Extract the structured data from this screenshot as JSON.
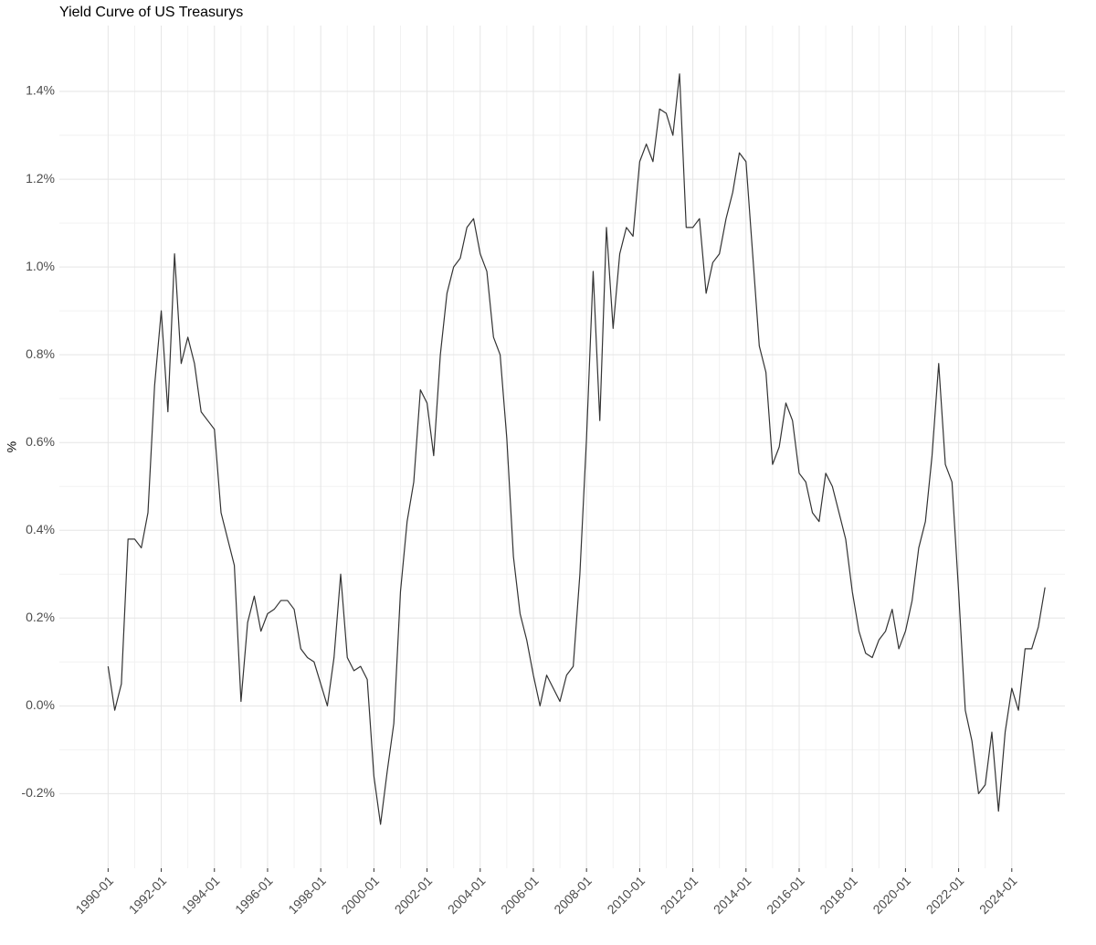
{
  "chart_data": {
    "type": "line",
    "title": "Yield Curve of US Treasurys",
    "y_label": "%",
    "x": [
      "1990-01",
      "1990-04",
      "1990-07",
      "1990-10",
      "1991-01",
      "1991-04",
      "1991-07",
      "1991-10",
      "1992-01",
      "1992-04",
      "1992-07",
      "1992-10",
      "1993-01",
      "1993-04",
      "1993-07",
      "1993-10",
      "1994-01",
      "1994-04",
      "1994-07",
      "1994-10",
      "1995-01",
      "1995-04",
      "1995-07",
      "1995-10",
      "1996-01",
      "1996-04",
      "1996-07",
      "1996-10",
      "1997-01",
      "1997-04",
      "1997-07",
      "1997-10",
      "1998-01",
      "1998-04",
      "1998-07",
      "1998-10",
      "1999-01",
      "1999-04",
      "1999-07",
      "1999-10",
      "2000-01",
      "2000-04",
      "2000-07",
      "2000-10",
      "2001-01",
      "2001-04",
      "2001-07",
      "2001-10",
      "2002-01",
      "2002-04",
      "2002-07",
      "2002-10",
      "2003-01",
      "2003-04",
      "2003-07",
      "2003-10",
      "2004-01",
      "2004-04",
      "2004-07",
      "2004-10",
      "2005-01",
      "2005-04",
      "2005-07",
      "2005-10",
      "2006-01",
      "2006-04",
      "2006-07",
      "2006-10",
      "2007-01",
      "2007-04",
      "2007-07",
      "2007-10",
      "2008-01",
      "2008-04",
      "2008-07",
      "2008-10",
      "2009-01",
      "2009-04",
      "2009-07",
      "2009-10",
      "2010-01",
      "2010-04",
      "2010-07",
      "2010-10",
      "2011-01",
      "2011-04",
      "2011-07",
      "2011-10",
      "2012-01",
      "2012-04",
      "2012-07",
      "2012-10",
      "2013-01",
      "2013-04",
      "2013-07",
      "2013-10",
      "2014-01",
      "2014-04",
      "2014-07",
      "2014-10",
      "2015-01",
      "2015-04",
      "2015-07",
      "2015-10",
      "2016-01",
      "2016-04",
      "2016-07",
      "2016-10",
      "2017-01",
      "2017-04",
      "2017-07",
      "2017-10",
      "2018-01",
      "2018-04",
      "2018-07",
      "2018-10",
      "2019-01",
      "2019-04",
      "2019-07",
      "2019-10",
      "2020-01",
      "2020-04",
      "2020-07",
      "2020-10",
      "2021-01",
      "2021-04",
      "2021-07",
      "2021-10",
      "2022-01",
      "2022-04",
      "2022-07",
      "2022-10",
      "2023-01",
      "2023-04",
      "2023-07",
      "2023-10",
      "2024-01",
      "2024-04",
      "2024-07",
      "2024-10",
      "2025-01",
      "2025-04"
    ],
    "series": [
      {
        "name": "Yield Curve",
        "color": "#333333",
        "values": [
          0.09,
          -0.01,
          0.05,
          0.38,
          0.38,
          0.36,
          0.44,
          0.73,
          0.9,
          0.67,
          1.03,
          0.78,
          0.84,
          0.78,
          0.67,
          0.65,
          0.63,
          0.44,
          0.38,
          0.32,
          0.01,
          0.19,
          0.25,
          0.17,
          0.21,
          0.22,
          0.24,
          0.24,
          0.22,
          0.13,
          0.11,
          0.1,
          0.05,
          0.0,
          0.11,
          0.3,
          0.11,
          0.08,
          0.09,
          0.06,
          -0.16,
          -0.27,
          -0.15,
          -0.04,
          0.26,
          0.42,
          0.51,
          0.72,
          0.69,
          0.57,
          0.8,
          0.94,
          1.0,
          1.02,
          1.09,
          1.11,
          1.03,
          0.99,
          0.84,
          0.8,
          0.61,
          0.34,
          0.21,
          0.15,
          0.07,
          0.0,
          0.07,
          0.04,
          0.01,
          0.07,
          0.09,
          0.3,
          0.61,
          0.99,
          0.65,
          1.09,
          0.86,
          1.03,
          1.09,
          1.07,
          1.24,
          1.28,
          1.24,
          1.36,
          1.35,
          1.3,
          1.44,
          1.09,
          1.09,
          1.11,
          0.94,
          1.01,
          1.03,
          1.11,
          1.17,
          1.26,
          1.24,
          1.03,
          0.82,
          0.76,
          0.55,
          0.59,
          0.69,
          0.65,
          0.53,
          0.51,
          0.44,
          0.42,
          0.53,
          0.5,
          0.44,
          0.38,
          0.26,
          0.17,
          0.12,
          0.11,
          0.15,
          0.17,
          0.22,
          0.13,
          0.17,
          0.24,
          0.36,
          0.42,
          0.57,
          0.78,
          0.55,
          0.51,
          0.26,
          -0.01,
          -0.08,
          -0.2,
          -0.18,
          -0.06,
          -0.24,
          -0.06,
          0.04,
          -0.01,
          0.13,
          0.13,
          0.18,
          0.27
        ]
      }
    ],
    "xlim": [
      "1988-03",
      "2026-01"
    ],
    "xticks": [
      "1990-01",
      "1992-01",
      "1994-01",
      "1996-01",
      "1998-01",
      "2000-01",
      "2002-01",
      "2004-01",
      "2006-01",
      "2008-01",
      "2010-01",
      "2012-01",
      "2014-01",
      "2016-01",
      "2018-01",
      "2020-01",
      "2022-01",
      "2024-01"
    ],
    "ylim": [
      -0.37,
      1.55
    ],
    "yticks": [
      {
        "value": -0.2,
        "label": "-0.2%"
      },
      {
        "value": 0.0,
        "label": "0.0%"
      },
      {
        "value": 0.2,
        "label": "0.2%"
      },
      {
        "value": 0.4,
        "label": "0.4%"
      },
      {
        "value": 0.6,
        "label": "0.6%"
      },
      {
        "value": 0.8,
        "label": "0.8%"
      },
      {
        "value": 1.0,
        "label": "1.0%"
      },
      {
        "value": 1.2,
        "label": "1.2%"
      },
      {
        "value": 1.4,
        "label": "1.4%"
      }
    ],
    "grid": true
  }
}
